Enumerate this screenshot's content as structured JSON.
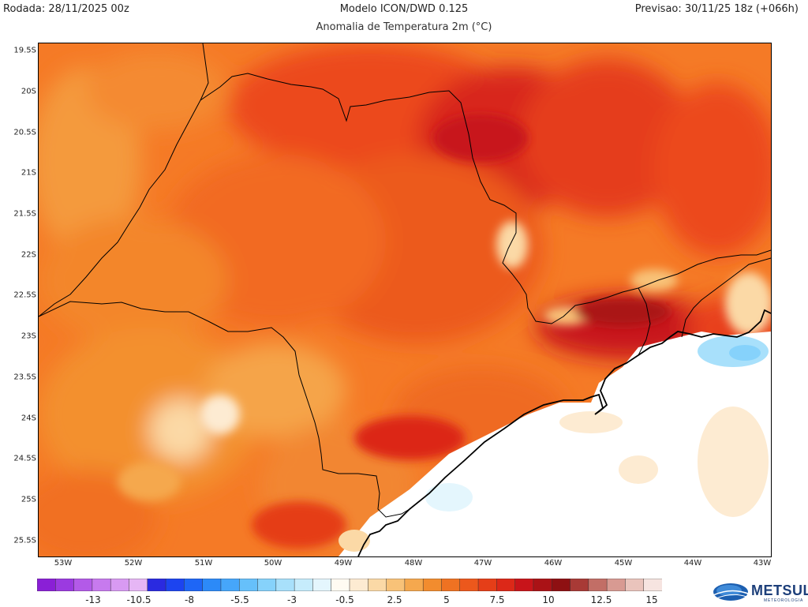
{
  "header": {
    "run": "Rodada: 28/11/2025 00z",
    "model": "Modelo ICON/DWD 0.125",
    "subtitle": "Anomalia de Temperatura 2m (°C)",
    "forecast": "Previsao: 30/11/25 18z (+066h)"
  },
  "axes": {
    "lat_labels": [
      "19.5S",
      "20S",
      "20.5S",
      "21S",
      "21.5S",
      "22S",
      "22.5S",
      "23S",
      "23.5S",
      "24S",
      "24.5S",
      "25S",
      "25.5S"
    ],
    "lon_labels": [
      "53W",
      "52W",
      "51W",
      "50W",
      "49W",
      "48W",
      "47W",
      "46W",
      "45W",
      "44W",
      "43W"
    ]
  },
  "colorbar": {
    "labels": [
      "-13",
      "-10.5",
      "-8",
      "-5.5",
      "-3",
      "-0.5",
      "2.5",
      "5",
      "7.5",
      "10",
      "12.5",
      "15"
    ],
    "colors": [
      "#8a1fd6",
      "#9b3ae0",
      "#b35ae8",
      "#c77aee",
      "#d89af2",
      "#e6b6f5",
      "#2a2ae0",
      "#1c44f0",
      "#1e66f6",
      "#2c8af8",
      "#46a6fa",
      "#66c0fa",
      "#86d2fb",
      "#a8e0fb",
      "#c6ecfc",
      "#e4f6fd",
      "#fffbf2",
      "#fdebd2",
      "#fbd9a6",
      "#f8c278",
      "#f5a84e",
      "#f28c2e",
      "#ef7222",
      "#ec581c",
      "#e53e18",
      "#dc2818",
      "#c8141a",
      "#aa1216",
      "#8e1012",
      "#a83a36",
      "#c26e66",
      "#d89a92",
      "#eac4bc",
      "#f6e4e0"
    ]
  },
  "logo": {
    "name": "METSUL",
    "tagline": "METEOROLOGIA"
  }
}
